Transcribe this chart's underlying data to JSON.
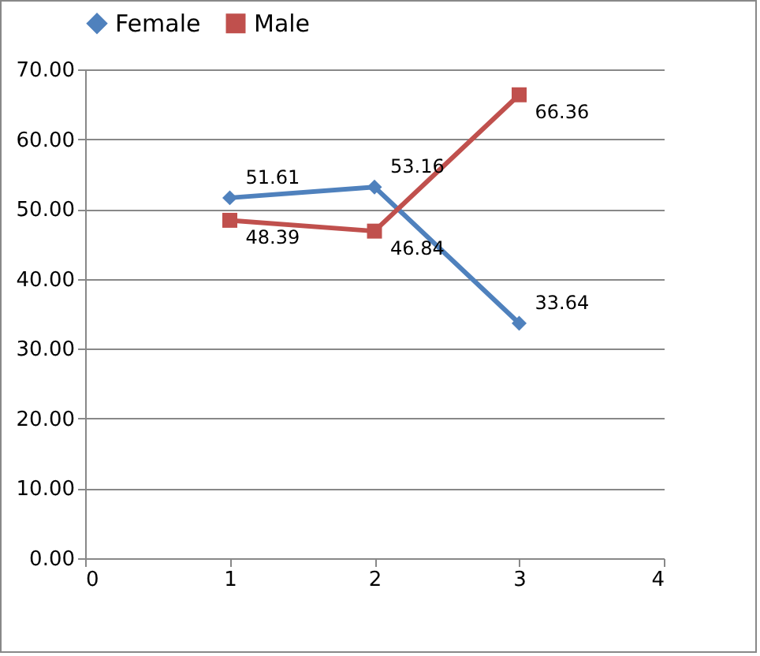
{
  "chart_data": {
    "type": "line",
    "x": [
      1,
      2,
      3
    ],
    "series": [
      {
        "name": "Female",
        "color": "#4f81bd",
        "marker": "diamond",
        "values": [
          51.61,
          53.16,
          33.64
        ]
      },
      {
        "name": "Male",
        "color": "#c0504d",
        "marker": "square",
        "values": [
          48.39,
          46.84,
          66.36
        ]
      }
    ],
    "xlim": [
      0,
      4
    ],
    "xticks": [
      0,
      1,
      2,
      3,
      4
    ],
    "ylim": [
      0,
      70
    ],
    "yticks": [
      {
        "value": 0,
        "label": "0.00"
      },
      {
        "value": 10,
        "label": "10.00"
      },
      {
        "value": 20,
        "label": "20.00"
      },
      {
        "value": 30,
        "label": "30.00"
      },
      {
        "value": 40,
        "label": "40.00"
      },
      {
        "value": 50,
        "label": "50.00"
      },
      {
        "value": 60,
        "label": "60.00"
      },
      {
        "value": 70,
        "label": "70.00"
      }
    ],
    "grid": "y",
    "legend": "top",
    "data_labels": true,
    "line_style": "solid"
  }
}
